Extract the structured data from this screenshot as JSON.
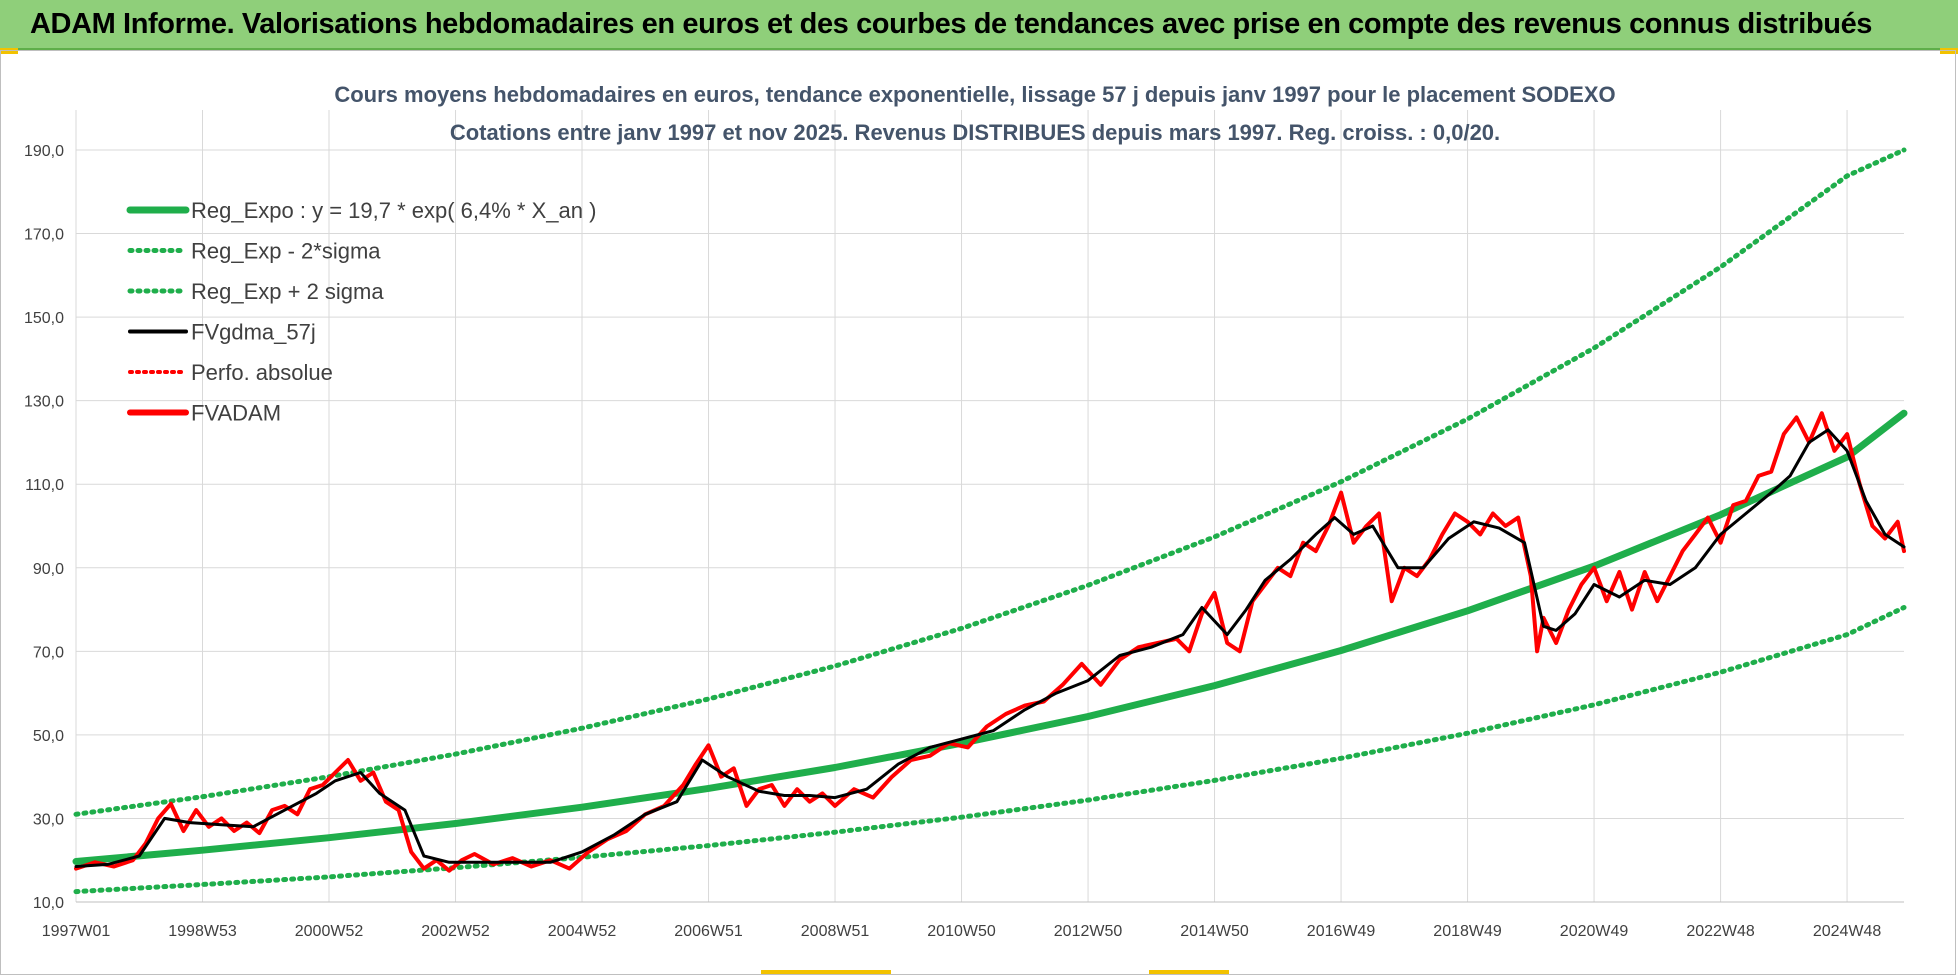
{
  "header": {
    "title": "ADAM Informe. Valorisations hebdomadaires en euros et des courbes de tendances avec prise en compte des revenus connus distribués"
  },
  "colors": {
    "header_bg": "#8fcf7a",
    "reg_green": "#1fae4b",
    "adam_red": "#ff0000",
    "gdma_black": "#000000",
    "grid": "#d9d9d9"
  },
  "chart_data": {
    "type": "line",
    "title": "Cours moyens hebdomadaires en euros, tendance exponentielle, lissage 57 j depuis janv 1997 pour le placement SODEXO",
    "subtitle": "Cotations entre janv 1997 et nov 2025. Revenus DISTRIBUES depuis mars 1997.  Reg. croiss. : 0,0/20.",
    "ylim": [
      10,
      190
    ],
    "y_ticks": [
      "10,0",
      "30,0",
      "50,0",
      "70,0",
      "90,0",
      "110,0",
      "130,0",
      "150,0",
      "170,0",
      "190,0"
    ],
    "x_range": [
      1997.0,
      2025.9
    ],
    "x_ticks": [
      {
        "label": "1997W01",
        "t": 1997.0
      },
      {
        "label": "1998W53",
        "t": 1999.0
      },
      {
        "label": "2000W52",
        "t": 2001.0
      },
      {
        "label": "2002W52",
        "t": 2003.0
      },
      {
        "label": "2004W52",
        "t": 2005.0
      },
      {
        "label": "2006W51",
        "t": 2007.0
      },
      {
        "label": "2008W51",
        "t": 2009.0
      },
      {
        "label": "2010W50",
        "t": 2011.0
      },
      {
        "label": "2012W50",
        "t": 2013.0
      },
      {
        "label": "2014W50",
        "t": 2015.0
      },
      {
        "label": "2016W49",
        "t": 2017.0
      },
      {
        "label": "2018W49",
        "t": 2019.0
      },
      {
        "label": "2020W49",
        "t": 2021.0
      },
      {
        "label": "2022W48",
        "t": 2023.0
      },
      {
        "label": "2024W48",
        "t": 2025.0
      }
    ],
    "legend": [
      {
        "label": "Reg_Expo : y = 19,7 * exp( 6,4% *  X_an )",
        "style": "green-solid"
      },
      {
        "label": "Reg_Exp - 2*sigma",
        "style": "green-dotted"
      },
      {
        "label": "Reg_Exp + 2 sigma",
        "style": "green-dotted"
      },
      {
        "label": "FVgdma_57j",
        "style": "black-solid"
      },
      {
        "label": "Perfo. absolue",
        "style": "red-dotted"
      },
      {
        "label": "FVADAM",
        "style": "red-solid"
      }
    ],
    "series": [
      {
        "name": "Reg_Expo",
        "x": [
          1997.0,
          1999.0,
          2001.0,
          2003.0,
          2005.0,
          2007.0,
          2009.0,
          2011.0,
          2013.0,
          2015.0,
          2017.0,
          2019.0,
          2021.0,
          2023.0,
          2025.0,
          2025.9
        ],
        "y": [
          19.7,
          22.4,
          25.4,
          28.8,
          32.7,
          37.2,
          42.2,
          48.0,
          54.4,
          61.8,
          70.2,
          79.7,
          90.4,
          102.7,
          116.5,
          127.0
        ]
      },
      {
        "name": "Reg_Exp - 2*sigma",
        "x": [
          1997.0,
          1999.0,
          2001.0,
          2003.0,
          2005.0,
          2007.0,
          2009.0,
          2011.0,
          2013.0,
          2015.0,
          2017.0,
          2019.0,
          2021.0,
          2023.0,
          2025.0,
          2025.9
        ],
        "y": [
          12.5,
          14.2,
          16.0,
          18.2,
          20.7,
          23.5,
          26.7,
          30.3,
          34.4,
          39.1,
          44.4,
          50.4,
          57.2,
          65.0,
          74.0,
          80.5
        ]
      },
      {
        "name": "Reg_Exp + 2 sigma",
        "x": [
          1997.0,
          1999.0,
          2001.0,
          2003.0,
          2005.0,
          2007.0,
          2009.0,
          2011.0,
          2013.0,
          2015.0,
          2017.0,
          2019.0,
          2021.0,
          2023.0,
          2025.0,
          2025.9
        ],
        "y": [
          31.0,
          35.2,
          40.0,
          45.4,
          51.6,
          58.6,
          66.5,
          75.5,
          85.8,
          97.4,
          110.6,
          125.6,
          142.6,
          162.0,
          183.8,
          190.0
        ]
      },
      {
        "name": "FVgdma_57j",
        "x": [
          1997.0,
          1997.5,
          1998.0,
          1998.4,
          1998.8,
          1999.3,
          1999.8,
          2000.3,
          2000.8,
          2001.1,
          2001.5,
          2001.8,
          2002.2,
          2002.5,
          2002.9,
          2003.5,
          2004.0,
          2004.5,
          2005.0,
          2005.5,
          2006.0,
          2006.5,
          2006.9,
          2007.3,
          2007.8,
          2008.2,
          2008.6,
          2009.0,
          2009.5,
          2010.0,
          2010.5,
          2011.0,
          2011.5,
          2012.0,
          2012.5,
          2013.0,
          2013.5,
          2014.0,
          2014.5,
          2014.8,
          2015.2,
          2015.5,
          2015.8,
          2016.2,
          2016.6,
          2016.9,
          2017.2,
          2017.5,
          2017.9,
          2018.3,
          2018.7,
          2019.1,
          2019.5,
          2019.9,
          2020.2,
          2020.4,
          2020.7,
          2021.0,
          2021.4,
          2021.8,
          2022.2,
          2022.6,
          2023.0,
          2023.4,
          2023.8,
          2024.1,
          2024.4,
          2024.7,
          2025.0,
          2025.3,
          2025.6,
          2025.9
        ],
        "y": [
          18.5,
          19.0,
          21.0,
          30.0,
          29.0,
          28.5,
          28.0,
          32.0,
          36.0,
          39.0,
          41.0,
          36.0,
          32.0,
          21.0,
          19.5,
          19.5,
          19.5,
          19.5,
          22.0,
          26.0,
          31.0,
          34.0,
          44.0,
          40.0,
          36.5,
          35.5,
          35.5,
          35.0,
          37.0,
          43.0,
          47.0,
          49.0,
          51.0,
          56.0,
          60.0,
          63.0,
          69.0,
          71.0,
          74.0,
          80.5,
          74.0,
          80.0,
          87.0,
          92.0,
          98.0,
          102.0,
          98.0,
          100.0,
          90.0,
          90.0,
          97.0,
          101.0,
          99.5,
          96.0,
          76.0,
          75.0,
          79.0,
          86.0,
          83.0,
          87.0,
          86.0,
          90.0,
          98.0,
          103.0,
          108.0,
          112.0,
          120.0,
          123.0,
          118.0,
          106.0,
          98.0,
          95.0
        ]
      },
      {
        "name": "FVADAM",
        "x": [
          1997.0,
          1997.3,
          1997.6,
          1997.9,
          1998.1,
          1998.3,
          1998.5,
          1998.7,
          1998.9,
          1999.1,
          1999.3,
          1999.5,
          1999.7,
          1999.9,
          2000.1,
          2000.3,
          2000.5,
          2000.7,
          2000.9,
          2001.1,
          2001.3,
          2001.5,
          2001.7,
          2001.9,
          2002.1,
          2002.3,
          2002.5,
          2002.7,
          2002.9,
          2003.1,
          2003.3,
          2003.6,
          2003.9,
          2004.2,
          2004.5,
          2004.8,
          2005.1,
          2005.4,
          2005.7,
          2006.0,
          2006.3,
          2006.6,
          2006.8,
          2007.0,
          2007.2,
          2007.4,
          2007.6,
          2007.8,
          2008.0,
          2008.2,
          2008.4,
          2008.6,
          2008.8,
          2009.0,
          2009.3,
          2009.6,
          2009.9,
          2010.2,
          2010.5,
          2010.8,
          2011.1,
          2011.4,
          2011.7,
          2012.0,
          2012.3,
          2012.6,
          2012.9,
          2013.2,
          2013.5,
          2013.8,
          2014.1,
          2014.4,
          2014.6,
          2014.8,
          2015.0,
          2015.2,
          2015.4,
          2015.6,
          2015.8,
          2016.0,
          2016.2,
          2016.4,
          2016.6,
          2016.8,
          2017.0,
          2017.2,
          2017.4,
          2017.6,
          2017.8,
          2018.0,
          2018.2,
          2018.4,
          2018.6,
          2018.8,
          2019.0,
          2019.2,
          2019.4,
          2019.6,
          2019.8,
          2020.0,
          2020.1,
          2020.2,
          2020.4,
          2020.6,
          2020.8,
          2021.0,
          2021.2,
          2021.4,
          2021.6,
          2021.8,
          2022.0,
          2022.2,
          2022.4,
          2022.6,
          2022.8,
          2023.0,
          2023.2,
          2023.4,
          2023.6,
          2023.8,
          2024.0,
          2024.2,
          2024.4,
          2024.6,
          2024.8,
          2025.0,
          2025.2,
          2025.4,
          2025.6,
          2025.8,
          2025.9
        ],
        "y": [
          18.0,
          19.5,
          18.5,
          20.0,
          24.0,
          30.0,
          33.5,
          27.0,
          32.0,
          28.0,
          30.0,
          27.0,
          29.0,
          26.5,
          32.0,
          33.0,
          31.0,
          37.0,
          38.0,
          41.0,
          44.0,
          39.0,
          41.0,
          34.0,
          32.0,
          22.0,
          18.0,
          20.0,
          17.5,
          20.0,
          21.5,
          19.0,
          20.5,
          18.5,
          20.0,
          18.0,
          22.0,
          25.0,
          27.0,
          31.0,
          33.0,
          38.0,
          43.0,
          47.5,
          40.0,
          42.0,
          33.0,
          37.0,
          38.0,
          33.0,
          37.0,
          34.0,
          36.0,
          33.0,
          37.0,
          35.0,
          40.0,
          44.0,
          45.0,
          48.0,
          47.0,
          52.0,
          55.0,
          57.0,
          58.0,
          62.0,
          67.0,
          62.0,
          68.0,
          71.0,
          72.0,
          73.0,
          70.0,
          79.0,
          84.0,
          72.0,
          70.0,
          82.0,
          86.0,
          90.0,
          88.0,
          96.0,
          94.0,
          100.0,
          108.0,
          96.0,
          100.0,
          103.0,
          82.0,
          90.0,
          88.0,
          92.0,
          98.0,
          103.0,
          101.0,
          98.0,
          103.0,
          100.0,
          102.0,
          88.0,
          70.0,
          78.0,
          72.0,
          80.0,
          86.0,
          90.0,
          82.0,
          89.0,
          80.0,
          89.0,
          82.0,
          88.0,
          94.0,
          98.0,
          102.0,
          96.0,
          105.0,
          106.0,
          112.0,
          113.0,
          122.0,
          126.0,
          120.0,
          127.0,
          118.0,
          122.0,
          110.0,
          100.0,
          97.0,
          101.0,
          94.0
        ]
      }
    ]
  }
}
